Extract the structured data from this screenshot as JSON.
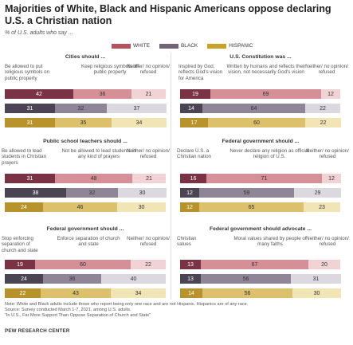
{
  "title": "Majorities of White, Black and Hispanic Americans oppose declaring U.S. a Christian nation",
  "subtitle": "% of U.S. adults who say ...",
  "legend": [
    {
      "name": "WHITE",
      "color": "#b5525e"
    },
    {
      "name": "BLACK",
      "color": "#6f6577"
    },
    {
      "name": "HISPANIC",
      "color": "#c9a227"
    }
  ],
  "chart_data": [
    {
      "type": "bar",
      "title": "Cities should ...",
      "columns": [
        "Be allowed to put religious symbols on public property",
        "Keep religious symbols off public property",
        "Neither/ no opinion/ refused"
      ],
      "series": [
        {
          "name": "WHITE",
          "values": [
            42,
            36,
            21
          ]
        },
        {
          "name": "BLACK",
          "values": [
            31,
            32,
            37
          ]
        },
        {
          "name": "HISPANIC",
          "values": [
            31,
            35,
            34
          ]
        }
      ]
    },
    {
      "type": "bar",
      "title": "U.S. Constitution was ...",
      "columns": [
        "Inspired by God, reflects God's vision for America",
        "Written by humans and reflects their vision, not necessarily God's vision",
        "Neither/ no opinion/ refused"
      ],
      "series": [
        {
          "name": "WHITE",
          "values": [
            19,
            69,
            12
          ]
        },
        {
          "name": "BLACK",
          "values": [
            14,
            64,
            22
          ]
        },
        {
          "name": "HISPANIC",
          "values": [
            17,
            60,
            22
          ]
        }
      ]
    },
    {
      "type": "bar",
      "title": "Public school teachers should ...",
      "columns": [
        "Be allowed to lead students in Christian prayers",
        "Not be allowed to lead students in any kind of prayers",
        "Neither/ no opinion/ refused"
      ],
      "series": [
        {
          "name": "WHITE",
          "values": [
            31,
            48,
            21
          ]
        },
        {
          "name": "BLACK",
          "values": [
            38,
            32,
            30
          ]
        },
        {
          "name": "HISPANIC",
          "values": [
            24,
            46,
            30
          ]
        }
      ]
    },
    {
      "type": "bar",
      "title": "Federal government should ...",
      "columns": [
        "Declare U.S. a Christian nation",
        "Never declare any religion as official religion of U.S.",
        "Neither/ no opinion/ refused"
      ],
      "series": [
        {
          "name": "WHITE",
          "values": [
            16,
            71,
            12
          ]
        },
        {
          "name": "BLACK",
          "values": [
            12,
            59,
            29
          ]
        },
        {
          "name": "HISPANIC",
          "values": [
            12,
            65,
            23
          ]
        }
      ]
    },
    {
      "type": "bar",
      "title": "Federal government should ...",
      "columns": [
        "Stop enforcing separation of church and state",
        "Enforce separation of church and state",
        "Neither/ no opinion/ refused"
      ],
      "series": [
        {
          "name": "WHITE",
          "values": [
            19,
            60,
            22
          ]
        },
        {
          "name": "BLACK",
          "values": [
            24,
            36,
            40
          ]
        },
        {
          "name": "HISPANIC",
          "values": [
            22,
            43,
            34
          ]
        }
      ]
    },
    {
      "type": "bar",
      "title": "Federal government should advocate ...",
      "columns": [
        "Christian values",
        "Moral values shared by people of many faiths",
        "Neither/ no opinion/ refused"
      ],
      "series": [
        {
          "name": "WHITE",
          "values": [
            13,
            67,
            20
          ]
        },
        {
          "name": "BLACK",
          "values": [
            13,
            56,
            31
          ]
        },
        {
          "name": "HISPANIC",
          "values": [
            14,
            56,
            30
          ]
        }
      ]
    }
  ],
  "palette": {
    "WHITE": [
      "#7a3344",
      "#d58f97",
      "#f1d3d6"
    ],
    "BLACK": [
      "#4b4452",
      "#8e8596",
      "#dcd8e0"
    ],
    "HISPANIC": [
      "#b8932b",
      "#dcc06b",
      "#f1e4b5"
    ]
  },
  "notes": [
    "Note: White and Black adults include those who report being only one race and are not Hispanic. Hispanics are of any race.",
    "Source: Survey conducted March 1-7, 2021, among U.S. adults.",
    "“In U.S., Far More Support Than Oppose Separation of Church and State”"
  ],
  "source_label": "PEW RESEARCH CENTER"
}
